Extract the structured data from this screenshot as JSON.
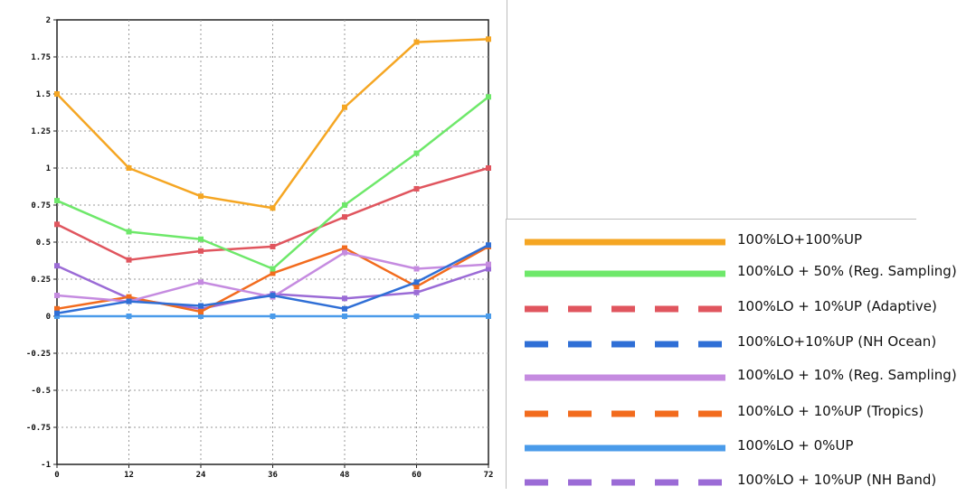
{
  "chart_data": {
    "type": "line",
    "title": "",
    "xlabel": "",
    "ylabel": "",
    "x": [
      0,
      12,
      24,
      36,
      48,
      60,
      72
    ],
    "x_tick_labels": [
      "0",
      "12",
      "24",
      "36",
      "48",
      "60",
      "72"
    ],
    "y_tick_values": [
      2,
      1.75,
      1.5,
      1.25,
      1,
      0.75,
      0.5,
      0.25,
      0,
      -0.25,
      -0.5,
      -0.75,
      -1
    ],
    "y_tick_labels": [
      "2",
      "1.75",
      "1.5",
      "1.25",
      "1",
      "0.75",
      "0.5",
      "0.25",
      "0",
      "-0.25",
      "-0.5",
      "-0.75",
      "-1"
    ],
    "xlim": [
      0,
      72
    ],
    "ylim": [
      -1,
      2
    ],
    "grid": true,
    "legend_placement": "right, outside plot",
    "series": [
      {
        "name": "100%LO+100%UP",
        "color": "#f5a623",
        "dash": "solid",
        "values": [
          1.5,
          1.0,
          0.81,
          0.73,
          1.41,
          1.85,
          1.87
        ]
      },
      {
        "name": "100%LO + 50% (Reg. Sampling)",
        "color": "#6ee86a",
        "dash": "solid",
        "values": [
          0.78,
          0.57,
          0.52,
          0.32,
          0.75,
          1.1,
          1.48
        ]
      },
      {
        "name": "100%LO + 10%UP (Adaptive)",
        "color": "#e0555e",
        "dash": "dashed",
        "values": [
          0.62,
          0.38,
          0.44,
          0.47,
          0.67,
          0.86,
          1.0
        ]
      },
      {
        "name": "100%LO+10%UP (NH Ocean)",
        "color": "#2f6fd6",
        "dash": "dashed",
        "values": [
          0.02,
          0.1,
          0.07,
          0.14,
          0.05,
          0.23,
          0.48
        ]
      },
      {
        "name": "100%LO + 10% (Reg. Sampling)",
        "color": "#c58be0",
        "dash": "solid",
        "values": [
          0.14,
          0.1,
          0.23,
          0.13,
          0.43,
          0.32,
          0.35
        ]
      },
      {
        "name": "100%LO + 10%UP (Tropics)",
        "color": "#f26b1d",
        "dash": "dashed",
        "values": [
          0.05,
          0.13,
          0.03,
          0.29,
          0.46,
          0.2,
          0.47
        ]
      },
      {
        "name": "100%LO + 0%UP",
        "color": "#4a9bea",
        "dash": "solid",
        "values": [
          0,
          0,
          0,
          0,
          0,
          0,
          0
        ]
      },
      {
        "name": "100%LO + 10%UP (NH Band)",
        "color": "#9b6bd6",
        "dash": "dashed",
        "values": [
          0.34,
          0.12,
          0.05,
          0.15,
          0.12,
          0.16,
          0.32
        ]
      }
    ]
  }
}
